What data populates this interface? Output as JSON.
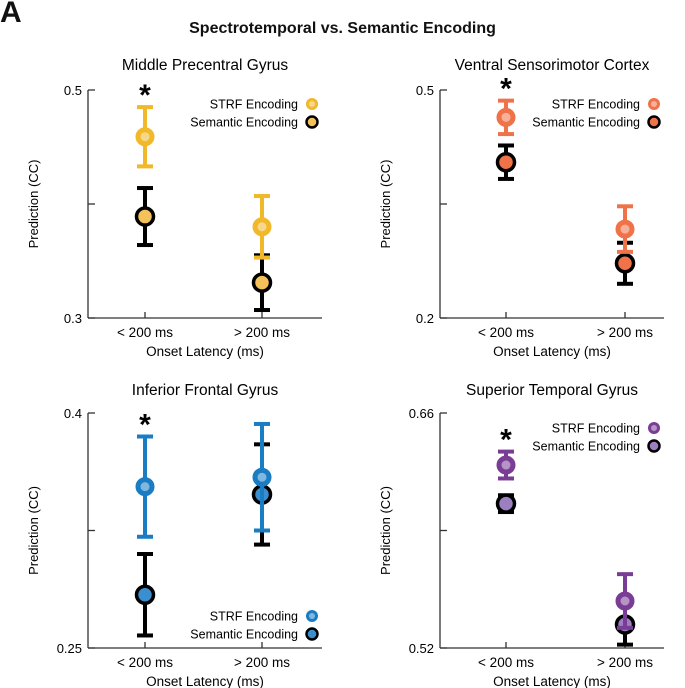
{
  "panel_letter": "A",
  "figure_title": "Spectrotemporal vs. Semantic Encoding",
  "chart_data": [
    {
      "type": "scatter",
      "title": "Middle Precentral Gyrus",
      "xlabel": "Onset Latency (ms)",
      "ylabel": "Prediction  (CC)",
      "categories": [
        "< 200 ms",
        "> 200 ms"
      ],
      "ylim": [
        0.3,
        0.5
      ],
      "yticks": [
        "0.5",
        "0.3"
      ],
      "legend": "top-right",
      "series": [
        {
          "name": "STRF Encoding",
          "color": "#f1b82a",
          "values": [
            0.459,
            0.38
          ],
          "err": [
            0.026,
            0.027
          ]
        },
        {
          "name": "Semantic Encoding",
          "color": "#000000",
          "fill": "#f4c15b",
          "values": [
            0.389,
            0.331
          ],
          "err": [
            0.025,
            0.024
          ]
        }
      ],
      "significance": [
        "*",
        ""
      ]
    },
    {
      "type": "scatter",
      "title": "Ventral Sensorimotor Cortex",
      "xlabel": "Onset Latency (ms)",
      "ylabel": "Prediction  (CC)",
      "categories": [
        "< 200 ms",
        "> 200 ms"
      ],
      "ylim": [
        0.2,
        0.5
      ],
      "yticks": [
        "0.5",
        "0.2"
      ],
      "legend": "top-right",
      "series": [
        {
          "name": "STRF Encoding",
          "color": "#f07249",
          "values": [
            0.464,
            0.317
          ],
          "err": [
            0.022,
            0.03
          ]
        },
        {
          "name": "Semantic Encoding",
          "color": "#000000",
          "fill": "#f07249",
          "values": [
            0.405,
            0.272
          ],
          "err": [
            0.022,
            0.027
          ]
        }
      ],
      "significance": [
        "*",
        ""
      ]
    },
    {
      "type": "scatter",
      "title": "Inferior Frontal Gyrus",
      "xlabel": "Onset Latency (ms)",
      "ylabel": "Prediction  (CC)",
      "categories": [
        "< 200 ms",
        "> 200 ms"
      ],
      "ylim": [
        0.25,
        0.4
      ],
      "yticks": [
        "0.4",
        "0.25"
      ],
      "legend": "bottom-right",
      "series": [
        {
          "name": "STRF Encoding",
          "color": "#1a7cc3",
          "values": [
            0.353,
            0.359
          ],
          "err": [
            0.032,
            0.034
          ]
        },
        {
          "name": "Semantic Encoding",
          "color": "#000000",
          "fill": "#3a8fd0",
          "values": [
            0.284,
            0.348
          ],
          "err": [
            0.026,
            0.032
          ]
        }
      ],
      "significance": [
        "*",
        ""
      ]
    },
    {
      "type": "scatter",
      "title": "Superior Temporal Gyrus",
      "xlabel": "Onset Latency (ms)",
      "ylabel": "Prediction  (CC)",
      "categories": [
        "< 200 ms",
        "> 200 ms"
      ],
      "ylim": [
        0.52,
        0.66
      ],
      "yticks": [
        "0.66",
        "0.52"
      ],
      "legend": "top-right",
      "series": [
        {
          "name": "STRF Encoding",
          "color": "#7a3d96",
          "values": [
            0.629,
            0.548
          ],
          "err": [
            0.008,
            0.016
          ]
        },
        {
          "name": "Semantic Encoding",
          "color": "#000000",
          "fill": "#9b7fc0",
          "values": [
            0.606,
            0.534
          ],
          "err": [
            0.005,
            0.012
          ]
        }
      ],
      "significance": [
        "*",
        ""
      ]
    }
  ]
}
